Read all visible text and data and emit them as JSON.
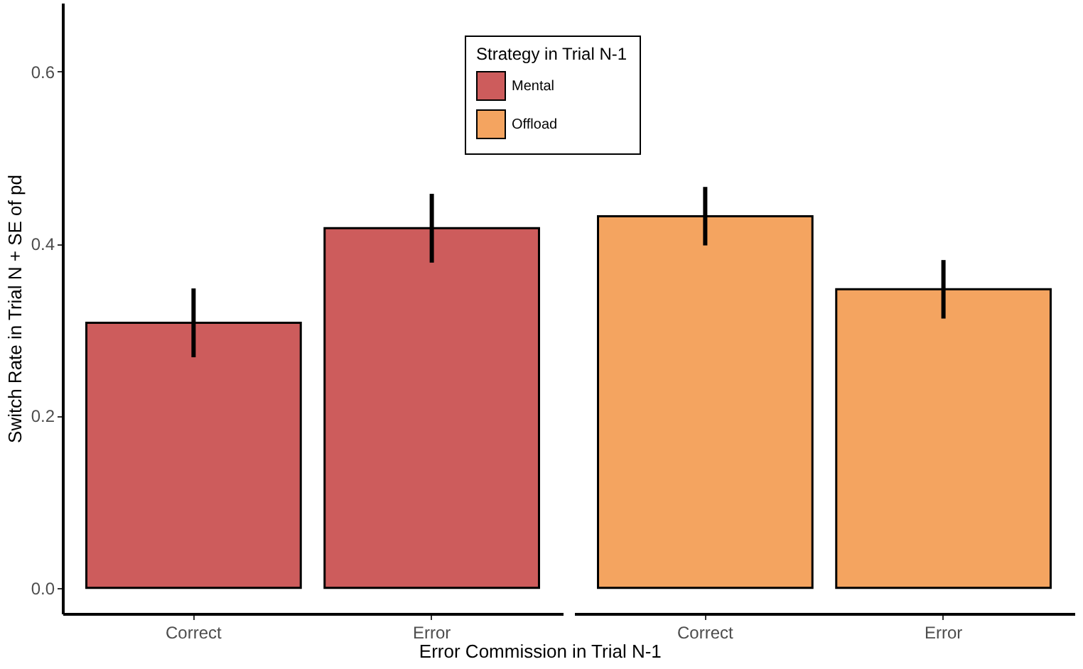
{
  "chart_data": [
    {
      "type": "bar",
      "xlabel": "Error Commission in Trial N-1",
      "ylabel": "Switch Rate in Trial N + SE of pd",
      "legend_title": "Strategy in Trial N-1",
      "legend": "top right",
      "categories": [
        "Correct",
        "Error"
      ],
      "series": [
        {
          "name": "Mental",
          "color": "#cd5c5c",
          "values": [
            0.308,
            0.418
          ],
          "errors": [
            0.04,
            0.04
          ]
        }
      ],
      "ylim": [
        -0.03,
        0.68
      ],
      "yticks": [
        {
          "value": 0,
          "label": "0.0"
        },
        0.2,
        0.4,
        0.6
      ],
      "grid": false
    },
    {
      "type": "bar",
      "legend": "top left",
      "categories": [
        "Correct",
        "Error"
      ],
      "series": [
        {
          "name": "Offload",
          "color": "#f4a460",
          "values": [
            0.432,
            0.347
          ],
          "errors": [
            0.034,
            0.034
          ]
        }
      ],
      "ylim": [
        -0.03,
        0.68
      ],
      "yticks": [
        0,
        0.2,
        0.4,
        0.6
      ],
      "grid": false,
      "tick_labels": "x"
    }
  ]
}
